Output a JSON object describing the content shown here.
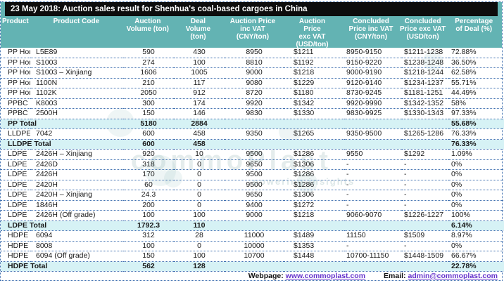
{
  "title": "23 May 2018: Auction sales result for Shenhua's coal-based cargoes in China",
  "table": {
    "columns": [
      {
        "lines": [
          "Product"
        ]
      },
      {
        "lines": [
          "Product Code"
        ]
      },
      {
        "lines": [
          "Auction",
          "Volume (ton)"
        ]
      },
      {
        "lines": [
          "Deal",
          "Volume",
          "(ton)"
        ]
      },
      {
        "lines": [
          "Auction Price",
          "inc VAT",
          "(CNY/ton)"
        ]
      },
      {
        "lines": [
          "Auction",
          "Price",
          "exc VAT",
          "(USD/ton)"
        ]
      },
      {
        "lines": [
          "Concluded",
          "Price inc VAT",
          "(CNY/ton)"
        ]
      },
      {
        "lines": [
          "Concluded",
          "Price exc VAT",
          "(USD/ton)"
        ]
      },
      {
        "lines": [
          "Percentage",
          "of Deal (%)"
        ]
      }
    ],
    "rows": [
      {
        "type": "data",
        "cells": [
          "PP Homo",
          "L5E89",
          "590",
          "430",
          "8950",
          "$1211",
          "8950-9150",
          "$1211-1238",
          "72.88%"
        ]
      },
      {
        "type": "data",
        "cells": [
          "PP Homo",
          "S1003",
          "274",
          "100",
          "8810",
          "$1192",
          "9150-9220",
          "$1238-1248",
          "36.50%"
        ]
      },
      {
        "type": "data",
        "cells": [
          "PP Homo",
          "S1003 – Xinjiang",
          "1606",
          "1005",
          "9000",
          "$1218",
          "9000-9190",
          "$1218-1244",
          "62.58%"
        ]
      },
      {
        "type": "data",
        "cells": [
          "PP Homo",
          "1100N",
          "210",
          "117",
          "9080",
          "$1229",
          "9120-9140",
          "$1234-1237",
          "55.71%"
        ]
      },
      {
        "type": "data",
        "cells": [
          "PP Homo",
          "1102K",
          "2050",
          "912",
          "8720",
          "$1180",
          "8730-9245",
          "$1181-1251",
          "44.49%"
        ]
      },
      {
        "type": "data",
        "cells": [
          "PPBC",
          "K8003",
          "300",
          "174",
          "9920",
          "$1342",
          "9920-9990",
          "$1342-1352",
          "58%"
        ]
      },
      {
        "type": "data",
        "cells": [
          "PPBC",
          "2500H",
          "150",
          "146",
          "9830",
          "$1330",
          "9830-9925",
          "$1330-1343",
          "97.33%"
        ]
      },
      {
        "type": "total",
        "cells": [
          "PP Total",
          "",
          "5180",
          "2884",
          "",
          "",
          "",
          "",
          "55.68%"
        ]
      },
      {
        "type": "data",
        "cells": [
          "LLDPE",
          "7042",
          "600",
          "458",
          "9350",
          "$1265",
          "9350-9500",
          "$1265-1286",
          "76.33%"
        ]
      },
      {
        "type": "total",
        "cells": [
          "LLDPE Total",
          "",
          "600",
          "458",
          "",
          "",
          "",
          "",
          "76.33%"
        ]
      },
      {
        "type": "data",
        "cells": [
          "LDPE",
          "2426H – Xinjiang",
          "920",
          "10",
          "9500",
          "$1286",
          "9550",
          "$1292",
          "1.09%"
        ]
      },
      {
        "type": "data",
        "cells": [
          "LDPE",
          "2426D",
          "318",
          "0",
          "9650",
          "$1306",
          "-",
          "-",
          "0%"
        ]
      },
      {
        "type": "data",
        "cells": [
          "LDPE",
          "2426H",
          "170",
          "0",
          "9500",
          "$1286",
          "-",
          "-",
          "0%"
        ]
      },
      {
        "type": "data",
        "cells": [
          "LDPE",
          "2420H",
          "60",
          "0",
          "9500",
          "$1286",
          "-",
          "-",
          "0%"
        ]
      },
      {
        "type": "data",
        "cells": [
          "LDPE",
          "2420H – Xinjiang",
          "24.3",
          "0",
          "9650",
          "$1306",
          "-",
          "-",
          "0%"
        ]
      },
      {
        "type": "data",
        "cells": [
          "LDPE",
          "1846H",
          "200",
          "0",
          "9400",
          "$1272",
          "-",
          "-",
          "0%"
        ]
      },
      {
        "type": "data",
        "cells": [
          "LDPE",
          "2426H (Off grade)",
          "100",
          "100",
          "9000",
          "$1218",
          "9060-9070",
          "$1226-1227",
          "100%"
        ]
      },
      {
        "type": "total",
        "cells": [
          "LDPE Total",
          "",
          "1792.3",
          "110",
          "",
          "",
          "",
          "",
          "6.14%"
        ]
      },
      {
        "type": "data",
        "cells": [
          "HDPE",
          "6094",
          "312",
          "28",
          "11000",
          "$1489",
          "11150",
          "$1509",
          "8.97%"
        ]
      },
      {
        "type": "data",
        "cells": [
          "HDPE",
          "8008",
          "100",
          "0",
          "10000",
          "$1353",
          "-",
          "-",
          "0%"
        ]
      },
      {
        "type": "data",
        "cells": [
          "HDPE",
          "6094 (Off grade)",
          "150",
          "100",
          "10700",
          "$1448",
          "10700-11150",
          "$1448-1509",
          "66.67%"
        ]
      },
      {
        "type": "total",
        "cells": [
          "HDPE Total",
          "",
          "562",
          "128",
          "",
          "",
          "",
          "",
          "22.78%"
        ]
      }
    ]
  },
  "footer": {
    "webpage_label": "Webpage:",
    "webpage_link": "www.commoplast.com",
    "email_label": "Email:",
    "email_link": "admin@commoplast.com"
  },
  "watermark": {
    "brand": "commoPlast",
    "tagline": "powering insights"
  },
  "colors": {
    "header_teal": "#63b3b3",
    "title_bg": "#0d0d0d",
    "total_row_bg": "#d6f2f5",
    "dotted_border": "#4070b0",
    "link_purple": "#6633cc"
  }
}
